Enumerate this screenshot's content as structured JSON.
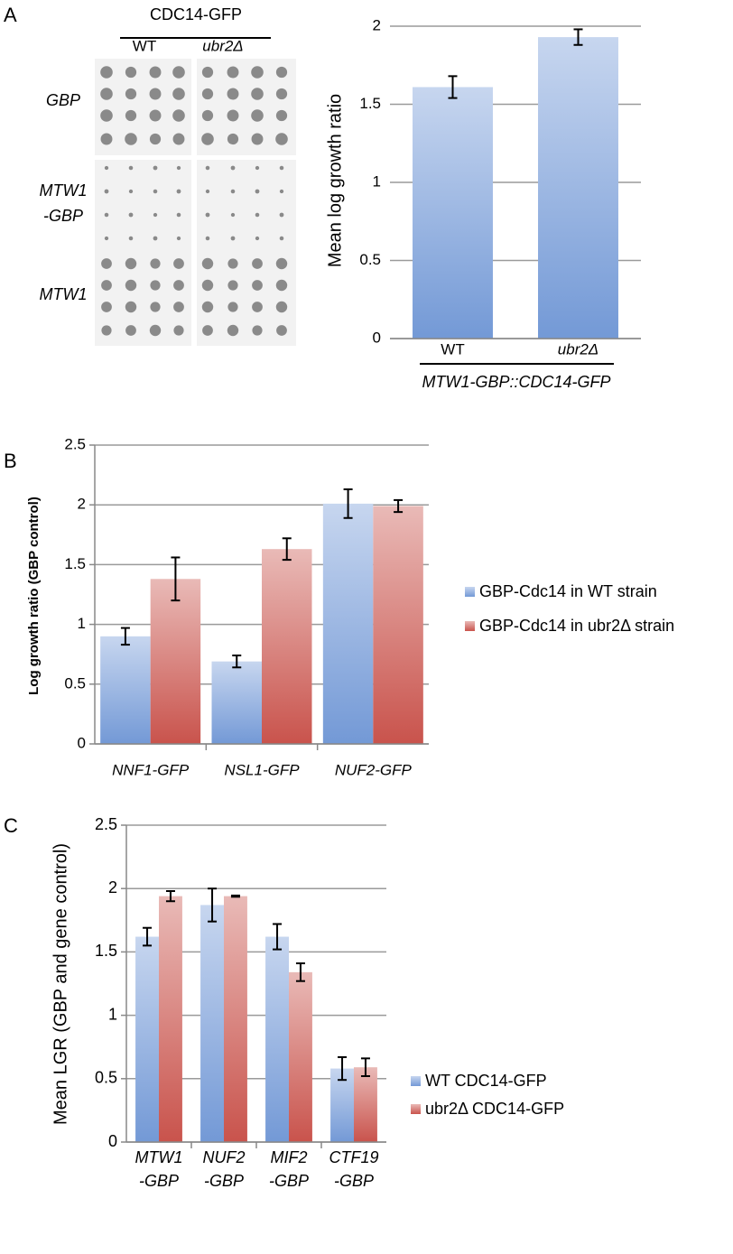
{
  "panel_labels": [
    "A",
    "B",
    "C"
  ],
  "spot_assay": {
    "header": "CDC14-GFP",
    "columns": [
      "WT",
      "ubr2Δ"
    ],
    "rows": [
      [
        "GBP"
      ],
      [
        "MTW1",
        "-GBP"
      ],
      [
        "MTW1"
      ]
    ]
  },
  "chart_data": [
    {
      "type": "bar",
      "y_label": "Mean log growth ratio",
      "x_label": "MTW1-GBP::CDC14-GFP",
      "categories": [
        "WT",
        "ubr2Δ"
      ],
      "values": [
        1.61,
        1.93
      ],
      "errors": [
        0.07,
        0.05
      ],
      "color": "#7399d6",
      "ylim": [
        0,
        2
      ],
      "yticks": [
        0,
        0.5,
        1,
        1.5,
        2
      ],
      "grid": true
    },
    {
      "type": "bar",
      "y_label": "Log growth ratio (GBP control)",
      "categories": [
        "NNF1-GFP",
        "NSL1-GFP",
        "NUF2-GFP"
      ],
      "series": [
        {
          "name": "GBP-Cdc14 in WT strain",
          "color": "#7399d6",
          "values": [
            0.9,
            0.69,
            2.01
          ],
          "errors": [
            0.07,
            0.05,
            0.12
          ]
        },
        {
          "name": "GBP-Cdc14 in ubr2Δ strain",
          "color": "#c9534c",
          "values": [
            1.38,
            1.63,
            1.99
          ],
          "errors": [
            0.18,
            0.09,
            0.05
          ]
        }
      ],
      "ylim": [
        0,
        2.5
      ],
      "yticks": [
        0,
        0.5,
        1,
        1.5,
        2,
        2.5
      ],
      "grid": true,
      "legend": "right"
    },
    {
      "type": "bar",
      "y_label": "Mean LGR (GBP and gene control)",
      "categories": [
        [
          "MTW1",
          "-GBP"
        ],
        [
          "NUF2",
          "-GBP"
        ],
        [
          "MIF2",
          "-GBP"
        ],
        [
          "CTF19",
          "-GBP"
        ]
      ],
      "series": [
        {
          "name": "WT CDC14-GFP",
          "color": "#7399d6",
          "values": [
            1.62,
            1.87,
            1.62,
            0.58
          ],
          "errors": [
            0.07,
            0.13,
            0.1,
            0.09
          ]
        },
        {
          "name": "ubr2Δ CDC14-GFP",
          "color": "#c9534c",
          "values": [
            1.94,
            1.94,
            1.34,
            0.59
          ],
          "errors": [
            0.04,
            0.005,
            0.07,
            0.07
          ]
        }
      ],
      "ylim": [
        0,
        2.5
      ],
      "yticks": [
        0,
        0.5,
        1,
        1.5,
        2,
        2.5
      ],
      "grid": true,
      "legend": "right"
    }
  ]
}
